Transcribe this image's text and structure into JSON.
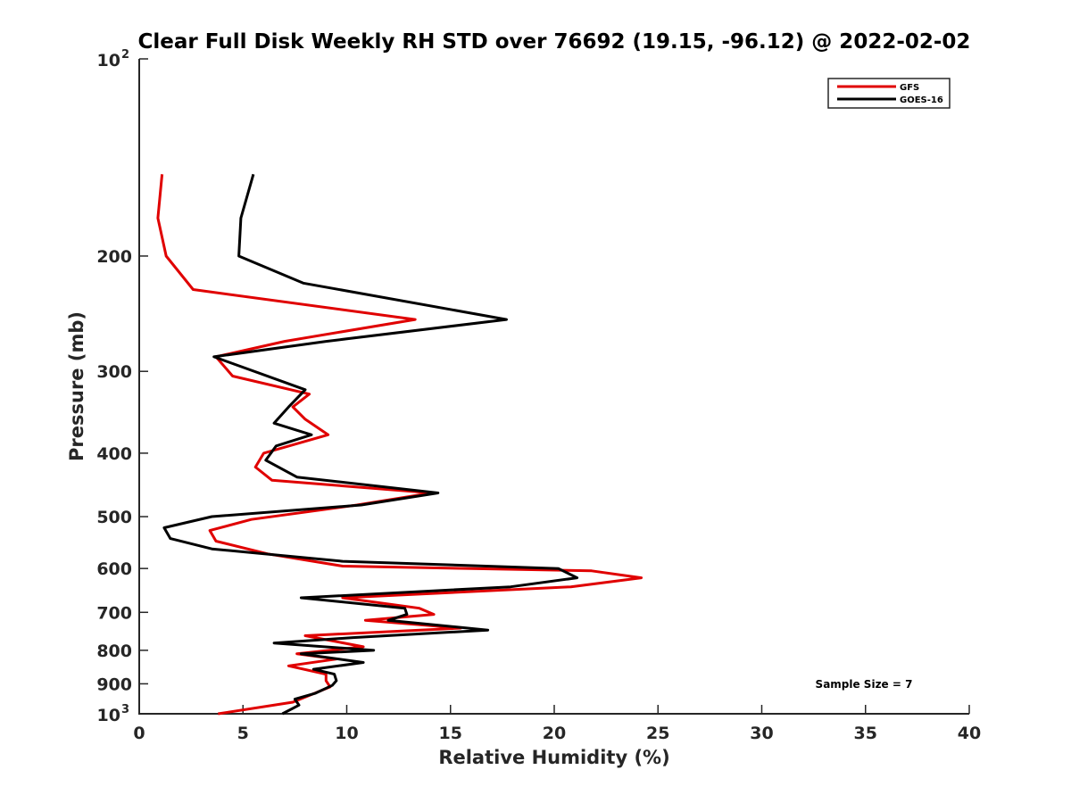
{
  "chart_data": {
    "type": "line",
    "title": "Clear Full Disk Weekly RH STD over 76692 (19.15, -96.12) @ 2022-02-02",
    "xlabel": "Relative Humidity (%)",
    "ylabel": "Pressure (mb)",
    "xlim": [
      0,
      40
    ],
    "ylim": [
      100,
      1000
    ],
    "yscale": "log",
    "y_reversed": true,
    "xticks": [
      0,
      5,
      10,
      15,
      20,
      25,
      30,
      35,
      40
    ],
    "xtick_labels": [
      "0",
      "5",
      "10",
      "15",
      "20",
      "25",
      "30",
      "35",
      "40"
    ],
    "yticks": [
      200,
      300,
      400,
      500,
      600,
      700,
      800,
      900
    ],
    "ytick_labels": [
      "200",
      "300",
      "400",
      "500",
      "600",
      "700",
      "800",
      "900"
    ],
    "ytick_top": {
      "base": "10",
      "exp": "2"
    },
    "ytick_bottom": {
      "base": "10",
      "exp": "3"
    },
    "legend": {
      "placement": "top-right"
    },
    "annotation": "Sample Size = 7",
    "series": [
      {
        "name": "GFS",
        "color": "#e00000",
        "x": [
          1.1,
          0.9,
          1.3,
          2.6,
          13.3,
          7.0,
          3.7,
          4.5,
          8.2,
          7.4,
          8.0,
          9.1,
          6.0,
          5.6,
          6.4,
          14.1,
          10.5,
          5.4,
          3.4,
          3.7,
          6.2,
          9.8,
          21.8,
          24.2,
          20.8,
          9.8,
          13.5,
          14.2,
          10.9,
          15.5,
          8.0,
          10.8,
          7.6,
          9.5,
          7.2,
          9.0,
          9.0,
          9.2,
          7.4,
          3.8
        ],
        "y": [
          150,
          175,
          200,
          225,
          250,
          270,
          285,
          305,
          325,
          340,
          355,
          375,
          400,
          420,
          440,
          460,
          480,
          505,
          525,
          545,
          570,
          595,
          605,
          620,
          640,
          665,
          690,
          705,
          720,
          740,
          760,
          790,
          810,
          825,
          845,
          870,
          890,
          910,
          960,
          1000
        ]
      },
      {
        "name": "GOES-16",
        "color": "#000000",
        "x": [
          5.5,
          4.9,
          4.8,
          7.9,
          17.7,
          9.0,
          3.6,
          8.0,
          7.2,
          6.5,
          8.3,
          6.6,
          6.1,
          7.6,
          14.4,
          10.7,
          3.5,
          1.2,
          1.5,
          3.5,
          9.8,
          20.2,
          21.1,
          17.9,
          7.8,
          12.8,
          12.9,
          12.0,
          16.8,
          10.3,
          6.5,
          11.3,
          7.8,
          10.8,
          8.4,
          9.4,
          9.5,
          9.3,
          8.5,
          7.5,
          7.7,
          6.9
        ],
        "y": [
          150,
          175,
          200,
          220,
          250,
          270,
          285,
          320,
          340,
          360,
          375,
          390,
          410,
          435,
          460,
          480,
          500,
          520,
          540,
          560,
          585,
          600,
          620,
          640,
          665,
          690,
          705,
          720,
          745,
          765,
          780,
          800,
          810,
          835,
          855,
          870,
          890,
          905,
          930,
          950,
          970,
          1000
        ]
      }
    ]
  }
}
